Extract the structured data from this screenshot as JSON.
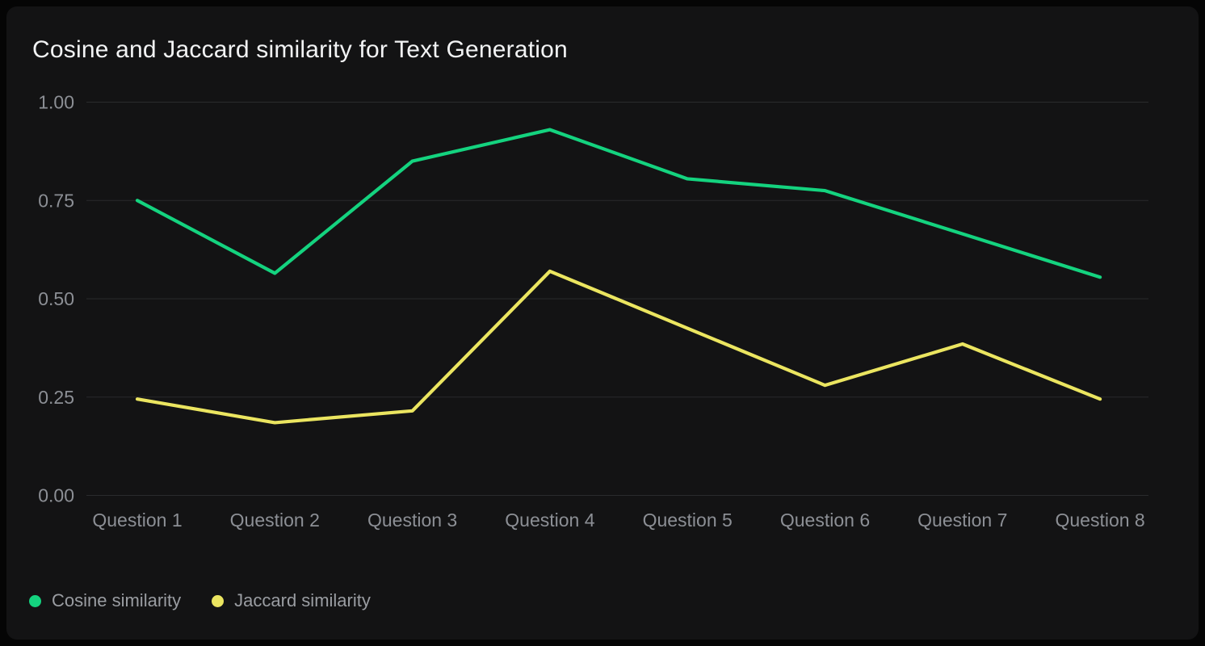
{
  "chart_data": {
    "type": "line",
    "title": "Cosine and Jaccard similarity for Text Generation",
    "categories": [
      "Question 1",
      "Question 2",
      "Question 3",
      "Question 4",
      "Question 5",
      "Question 6",
      "Question 7",
      "Question 8"
    ],
    "series": [
      {
        "name": "Cosine similarity",
        "color": "#14d37f",
        "values": [
          0.75,
          0.565,
          0.85,
          0.93,
          0.805,
          0.775,
          0.665,
          0.555
        ]
      },
      {
        "name": "Jaccard similarity",
        "color": "#ebe560",
        "values": [
          0.245,
          0.185,
          0.215,
          0.57,
          0.425,
          0.28,
          0.385,
          0.245
        ]
      }
    ],
    "xlabel": "",
    "ylabel": "",
    "ylim": [
      0,
      1
    ],
    "yticks": [
      {
        "value": 0,
        "label": "0.00"
      },
      {
        "value": 0.25,
        "label": "0.25"
      },
      {
        "value": 0.5,
        "label": "0.50"
      },
      {
        "value": 0.75,
        "label": "0.75"
      },
      {
        "value": 1,
        "label": "1.00"
      }
    ],
    "grid": true,
    "legend_position": "bottom-left"
  },
  "theme": {
    "page_bg": "#050505",
    "card_bg": "#131314",
    "grid_color": "#2a2b2d",
    "axis_text_color": "#8c8f95",
    "legend_text_color": "#9a9da2",
    "title_color": "#f2f3f4"
  }
}
